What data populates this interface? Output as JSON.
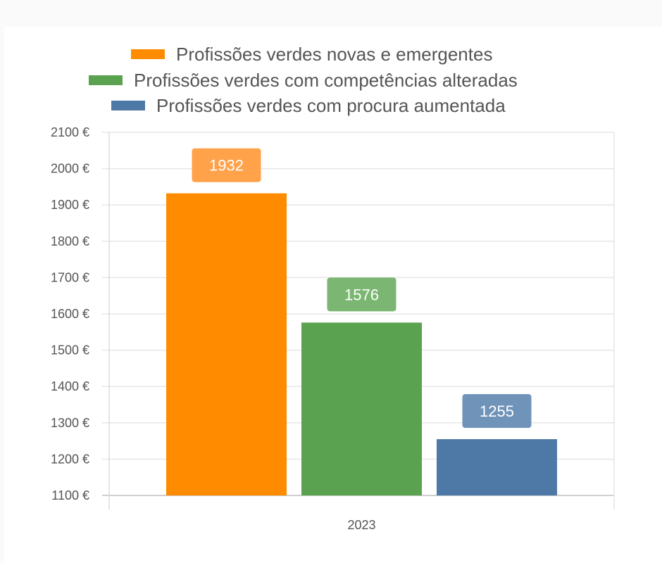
{
  "chart_data": {
    "type": "bar",
    "categories": [
      "2023"
    ],
    "series": [
      {
        "name": "Profissões verdes novas e emergentes",
        "values": [
          1932
        ],
        "color": "#ff8c00",
        "label_color": "#ffa24a"
      },
      {
        "name": "Profissões verdes com competências alteradas",
        "values": [
          1576
        ],
        "color": "#5ba250",
        "label_color": "#7bb672"
      },
      {
        "name": "Profissões verdes com procura aumentada",
        "values": [
          1255
        ],
        "color": "#4e79a7",
        "label_color": "#7093ba"
      }
    ],
    "yticks": [
      "1100 €",
      "1200 €",
      "1300 €",
      "1400 €",
      "1500 €",
      "1600 €",
      "1700 €",
      "1800 €",
      "1900 €",
      "2000 €",
      "2100 €"
    ],
    "ylim": [
      1100,
      2100
    ],
    "y_unit": "€",
    "grid": true,
    "legend_position": "top",
    "title": "",
    "xlabel": "",
    "ylabel": ""
  }
}
